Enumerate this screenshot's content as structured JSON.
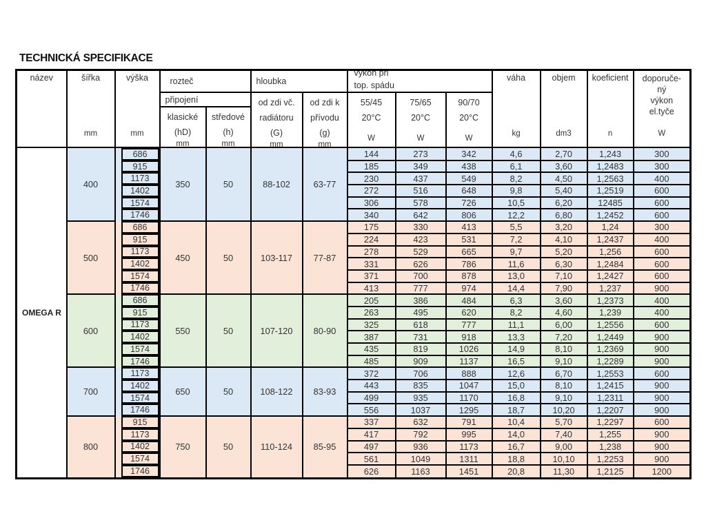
{
  "page": {
    "title": "TECHNICKÁ SPECIFIKACE"
  },
  "colors": {
    "blue": "#dbe9f6",
    "salmon": "#fbe3d6",
    "green": "#e2efda",
    "border": "#000000"
  },
  "table": {
    "product": "OMEGA R",
    "header": {
      "nazev": "název",
      "sirka": "šířka",
      "vyska": "výška",
      "roztec": "rozteč",
      "pripojeni": "připojení",
      "klasicke_l1": "klasické",
      "klasicke_l2": "(hD)",
      "stredove_l1": "středové",
      "stredove_l2": "(h)",
      "hloubka": "hloubka",
      "odzdi_g_l1": "od zdi  vč.",
      "odzdi_g_l2": "radiátoru",
      "odzdi_g_l3": "(G)",
      "odzdi_k_l1": "od zdi  k",
      "odzdi_k_l2": "přívodu",
      "odzdi_k_l3": "(g)",
      "vykon_l1": "výkon při",
      "vykon_l2": "top. spádu",
      "temp1": "55/45",
      "temp2": "75/65",
      "temp3": "90/70",
      "temp_sub": "20°C",
      "vaha": "váha",
      "objem": "objem",
      "koeficient": "koeficient",
      "dopor_l1": "doporuče-",
      "dopor_l2": "ný",
      "dopor_l3": "výkon",
      "dopor_l4": "el.tyče",
      "unit_mm": "mm",
      "unit_w": "W",
      "unit_kg": "kg",
      "unit_dm3": "dm3",
      "unit_n": "n"
    },
    "groups": [
      {
        "sirka": "400",
        "klasicke": "350",
        "stredove": "50",
        "hloubka_g": "88-102",
        "hloubka_g2": "63-77",
        "color": "blue",
        "rows": [
          [
            "686",
            "144",
            "273",
            "342",
            "4,6",
            "2,70",
            "1,243",
            "300"
          ],
          [
            "915",
            "185",
            "349",
            "438",
            "6,1",
            "3,60",
            "1,2483",
            "300"
          ],
          [
            "1173",
            "230",
            "437",
            "549",
            "8,2",
            "4,50",
            "1,2563",
            "400"
          ],
          [
            "1402",
            "272",
            "516",
            "648",
            "9,8",
            "5,40",
            "1,2519",
            "600"
          ],
          [
            "1574",
            "306",
            "578",
            "726",
            "10,5",
            "6,20",
            "12485",
            "600"
          ],
          [
            "1746",
            "340",
            "642",
            "806",
            "12,2",
            "6,80",
            "1,2452",
            "600"
          ]
        ]
      },
      {
        "sirka": "500",
        "klasicke": "450",
        "stredove": "50",
        "hloubka_g": "103-117",
        "hloubka_g2": "77-87",
        "color": "salmon",
        "rows": [
          [
            "686",
            "175",
            "330",
            "413",
            "5,5",
            "3,20",
            "1,24",
            "300"
          ],
          [
            "915",
            "224",
            "423",
            "531",
            "7,2",
            "4,10",
            "1,2437",
            "400"
          ],
          [
            "1173",
            "278",
            "529",
            "665",
            "9,7",
            "5,20",
            "1,256",
            "600"
          ],
          [
            "1402",
            "331",
            "626",
            "786",
            "11,6",
            "6,30",
            "1,2484",
            "600"
          ],
          [
            "1574",
            "371",
            "700",
            "878",
            "13,0",
            "7,10",
            "1,2427",
            "600"
          ],
          [
            "1746",
            "413",
            "777",
            "974",
            "14,4",
            "7,90",
            "1,237",
            "900"
          ]
        ]
      },
      {
        "sirka": "600",
        "klasicke": "550",
        "stredove": "50",
        "hloubka_g": "107-120",
        "hloubka_g2": "80-90",
        "color": "green",
        "rows": [
          [
            "686",
            "205",
            "386",
            "484",
            "6,3",
            "3,60",
            "1,2373",
            "400"
          ],
          [
            "915",
            "263",
            "495",
            "620",
            "8,2",
            "4,60",
            "1,239",
            "400"
          ],
          [
            "1173",
            "325",
            "618",
            "777",
            "11,1",
            "6,00",
            "1,2556",
            "600"
          ],
          [
            "1402",
            "387",
            "731",
            "918",
            "13,3",
            "7,20",
            "1,2449",
            "900"
          ],
          [
            "1574",
            "435",
            "819",
            "1026",
            "14,9",
            "8,10",
            "1,2369",
            "900"
          ],
          [
            "1746",
            "485",
            "909",
            "1137",
            "16,5",
            "9,10",
            "1,2289",
            "900"
          ]
        ]
      },
      {
        "sirka": "700",
        "klasicke": "650",
        "stredove": "50",
        "hloubka_g": "108-122",
        "hloubka_g2": "83-93",
        "color": "blue",
        "rows": [
          [
            "1173",
            "372",
            "706",
            "888",
            "12,6",
            "6,70",
            "1,2553",
            "600"
          ],
          [
            "1402",
            "443",
            "835",
            "1047",
            "15,0",
            "8,10",
            "1,2415",
            "900"
          ],
          [
            "1574",
            "499",
            "935",
            "1170",
            "16,8",
            "9,10",
            "1,2311",
            "900"
          ],
          [
            "1746",
            "556",
            "1037",
            "1295",
            "18,7",
            "10,20",
            "1,2207",
            "900"
          ]
        ]
      },
      {
        "sirka": "800",
        "klasicke": "750",
        "stredove": "50",
        "hloubka_g": "110-124",
        "hloubka_g2": "85-95",
        "color": "salmon",
        "rows": [
          [
            "915",
            "337",
            "632",
            "791",
            "10,4",
            "5,70",
            "1,2297",
            "600"
          ],
          [
            "1173",
            "417",
            "792",
            "995",
            "14,0",
            "7,40",
            "1,255",
            "900"
          ],
          [
            "1402",
            "497",
            "936",
            "1173",
            "16,7",
            "9,00",
            "1,238",
            "900"
          ],
          [
            "1574",
            "561",
            "1049",
            "1311",
            "18,8",
            "10,10",
            "1,2253",
            "900"
          ],
          [
            "1746",
            "626",
            "1163",
            "1451",
            "20,8",
            "11,30",
            "1,2125",
            "1200"
          ]
        ]
      }
    ]
  }
}
